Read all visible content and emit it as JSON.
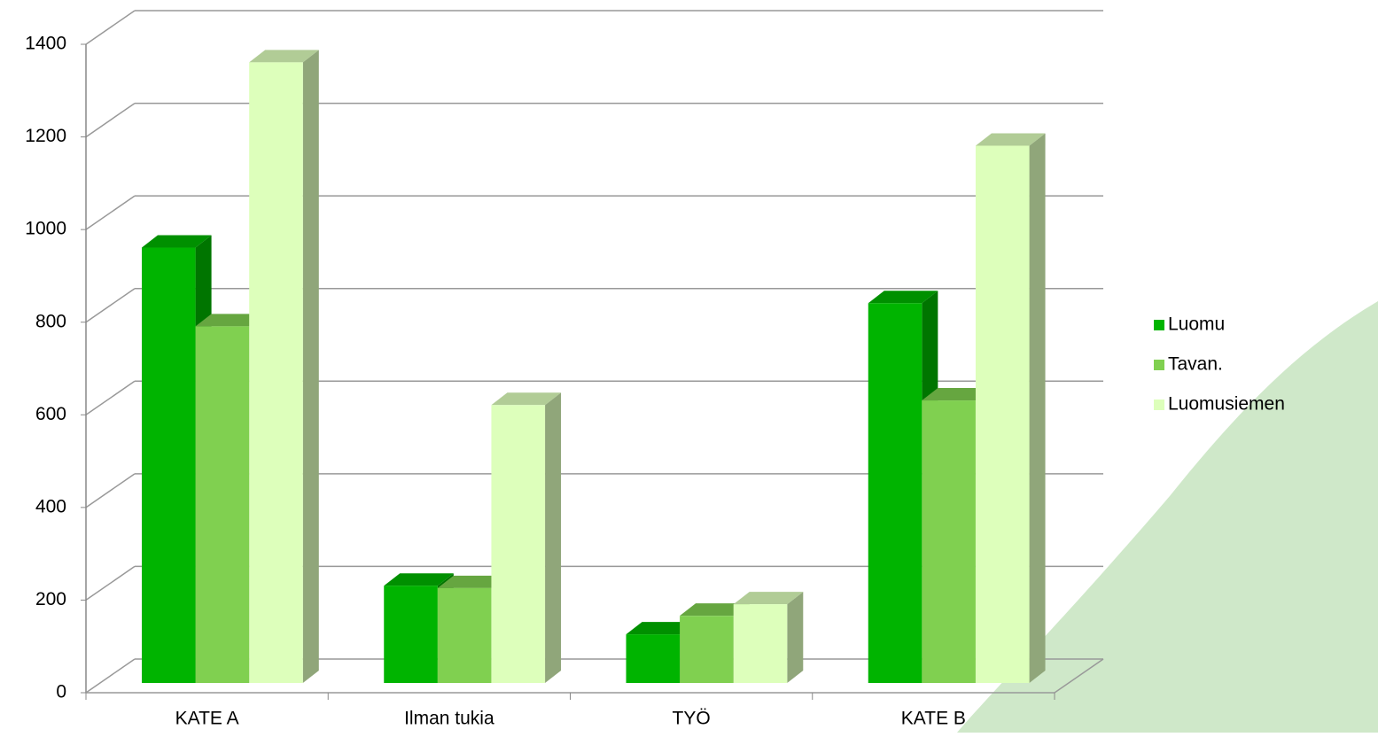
{
  "chart_data": {
    "type": "bar3d",
    "categories": [
      "KATE A",
      "Ilman tukia",
      "TYÖ",
      "KATE B"
    ],
    "series": [
      {
        "name": "Luomu",
        "color": "#00b400",
        "values": [
          940,
          210,
          105,
          820
        ]
      },
      {
        "name": "Tavan.",
        "color": "#80d050",
        "values": [
          770,
          205,
          145,
          610
        ]
      },
      {
        "name": "Luomusiemen",
        "color": "#ddffbb",
        "values": [
          1340,
          600,
          170,
          1160
        ]
      }
    ],
    "ylim": [
      0,
      1400
    ],
    "yticks": [
      0,
      200,
      400,
      600,
      800,
      1000,
      1200,
      1400
    ],
    "grid": true,
    "legend": "right"
  }
}
